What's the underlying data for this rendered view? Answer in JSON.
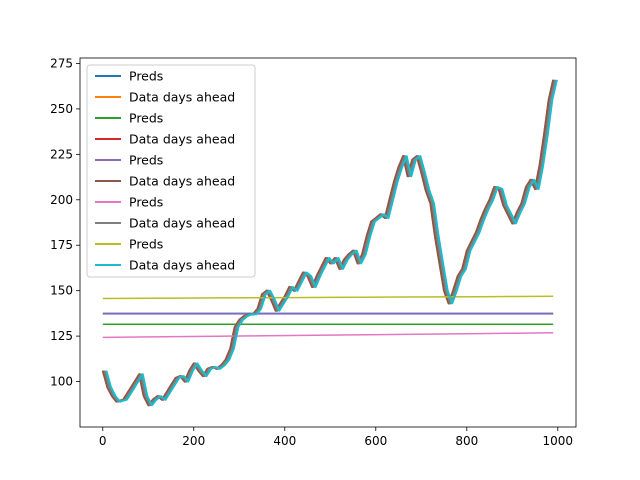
{
  "chart_data": {
    "type": "line",
    "title": "",
    "xlabel": "",
    "ylabel": "",
    "xlim": [
      -50,
      1040
    ],
    "ylim": [
      75,
      278
    ],
    "xticks": [
      0,
      200,
      400,
      600,
      800,
      1000
    ],
    "yticks": [
      100,
      125,
      150,
      175,
      200,
      225,
      250,
      275
    ],
    "grid": false,
    "legend_position": "upper-left",
    "series": [
      {
        "name": "Preds",
        "color": "#1f77b4",
        "width": 1.5,
        "kind": "flat",
        "level": 137.5,
        "x_end": 990
      },
      {
        "name": "Data days ahead",
        "color": "#ff7f0e",
        "width": 2.0,
        "kind": "price",
        "x_offset": 0
      },
      {
        "name": "Preds",
        "color": "#2ca02c",
        "width": 1.5,
        "kind": "flat",
        "level": 131.5,
        "x_end": 990
      },
      {
        "name": "Data days ahead",
        "color": "#d62728",
        "width": 2.0,
        "kind": "price",
        "x_offset": 2
      },
      {
        "name": "Preds",
        "color": "#9467bd",
        "width": 1.5,
        "kind": "flat",
        "level": 137.2,
        "x_end": 990
      },
      {
        "name": "Data days ahead",
        "color": "#8c564b",
        "width": 2.0,
        "kind": "price",
        "x_offset": 0
      },
      {
        "name": "Preds",
        "color": "#e377c2",
        "width": 1.5,
        "kind": "drift",
        "start": 124.3,
        "end": 126.8,
        "x_end": 990
      },
      {
        "name": "Data days ahead",
        "color": "#7f7f7f",
        "width": 2.0,
        "kind": "price",
        "x_offset": 4
      },
      {
        "name": "Preds",
        "color": "#bcbd22",
        "width": 1.5,
        "kind": "drift",
        "start": 145.7,
        "end": 146.9,
        "x_end": 990
      },
      {
        "name": "Data days ahead",
        "color": "#17becf",
        "width": 2.0,
        "kind": "price",
        "x_offset": 8
      }
    ],
    "price_x": [
      0,
      10,
      20,
      30,
      45,
      60,
      70,
      80,
      90,
      100,
      110,
      120,
      130,
      140,
      150,
      160,
      170,
      180,
      190,
      200,
      210,
      220,
      230,
      240,
      250,
      260,
      270,
      280,
      290,
      300,
      310,
      320,
      330,
      340,
      350,
      360,
      370,
      380,
      390,
      400,
      410,
      420,
      430,
      440,
      450,
      460,
      470,
      480,
      490,
      500,
      510,
      520,
      530,
      540,
      550,
      560,
      570,
      580,
      590,
      600,
      610,
      620,
      630,
      640,
      650,
      660,
      670,
      680,
      690,
      700,
      710,
      720,
      730,
      740,
      750,
      760,
      770,
      780,
      790,
      800,
      810,
      820,
      830,
      840,
      850,
      860,
      870,
      880,
      890,
      900,
      910,
      920,
      930,
      940,
      950,
      960,
      970,
      980,
      990
    ],
    "price_y": [
      106,
      97,
      92,
      89,
      90,
      96,
      100,
      104,
      92,
      87,
      90,
      92,
      90,
      94,
      98,
      102,
      103,
      100,
      106,
      110,
      106,
      103,
      107,
      108,
      107,
      109,
      112,
      118,
      130,
      134,
      136,
      137,
      137,
      140,
      148,
      150,
      145,
      139,
      143,
      147,
      152,
      150,
      155,
      160,
      158,
      152,
      158,
      163,
      168,
      165,
      168,
      162,
      167,
      170,
      172,
      165,
      170,
      180,
      188,
      190,
      192,
      190,
      200,
      210,
      218,
      224,
      213,
      222,
      224,
      215,
      205,
      198,
      180,
      165,
      150,
      143,
      150,
      158,
      162,
      172,
      177,
      182,
      189,
      195,
      200,
      207,
      206,
      197,
      192,
      187,
      193,
      198,
      207,
      211,
      206,
      219,
      236,
      255,
      266
    ]
  },
  "legend": {
    "entries": [
      "Preds",
      "Data days ahead",
      "Preds",
      "Data days ahead",
      "Preds",
      "Data days ahead",
      "Preds",
      "Data days ahead",
      "Preds",
      "Data days ahead"
    ]
  }
}
